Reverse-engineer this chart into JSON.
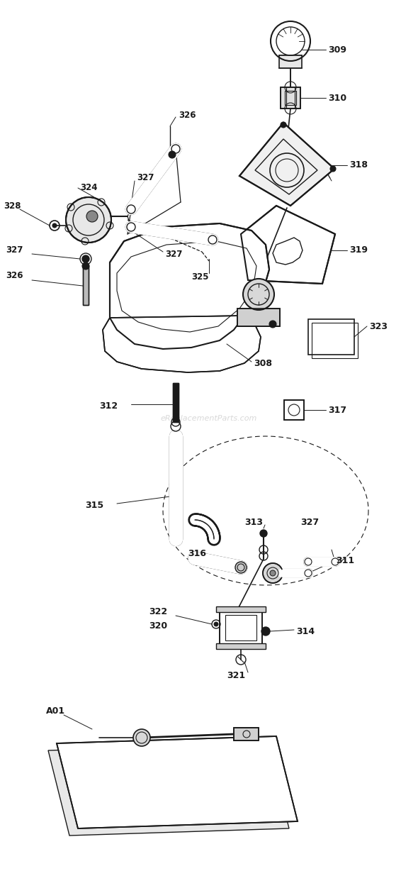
{
  "bg_color": "#ffffff",
  "line_color": "#1a1a1a",
  "watermark": "eReplacementParts.com",
  "watermark_color": "#c8c8c8",
  "fig_width": 5.9,
  "fig_height": 12.28,
  "dpi": 100
}
